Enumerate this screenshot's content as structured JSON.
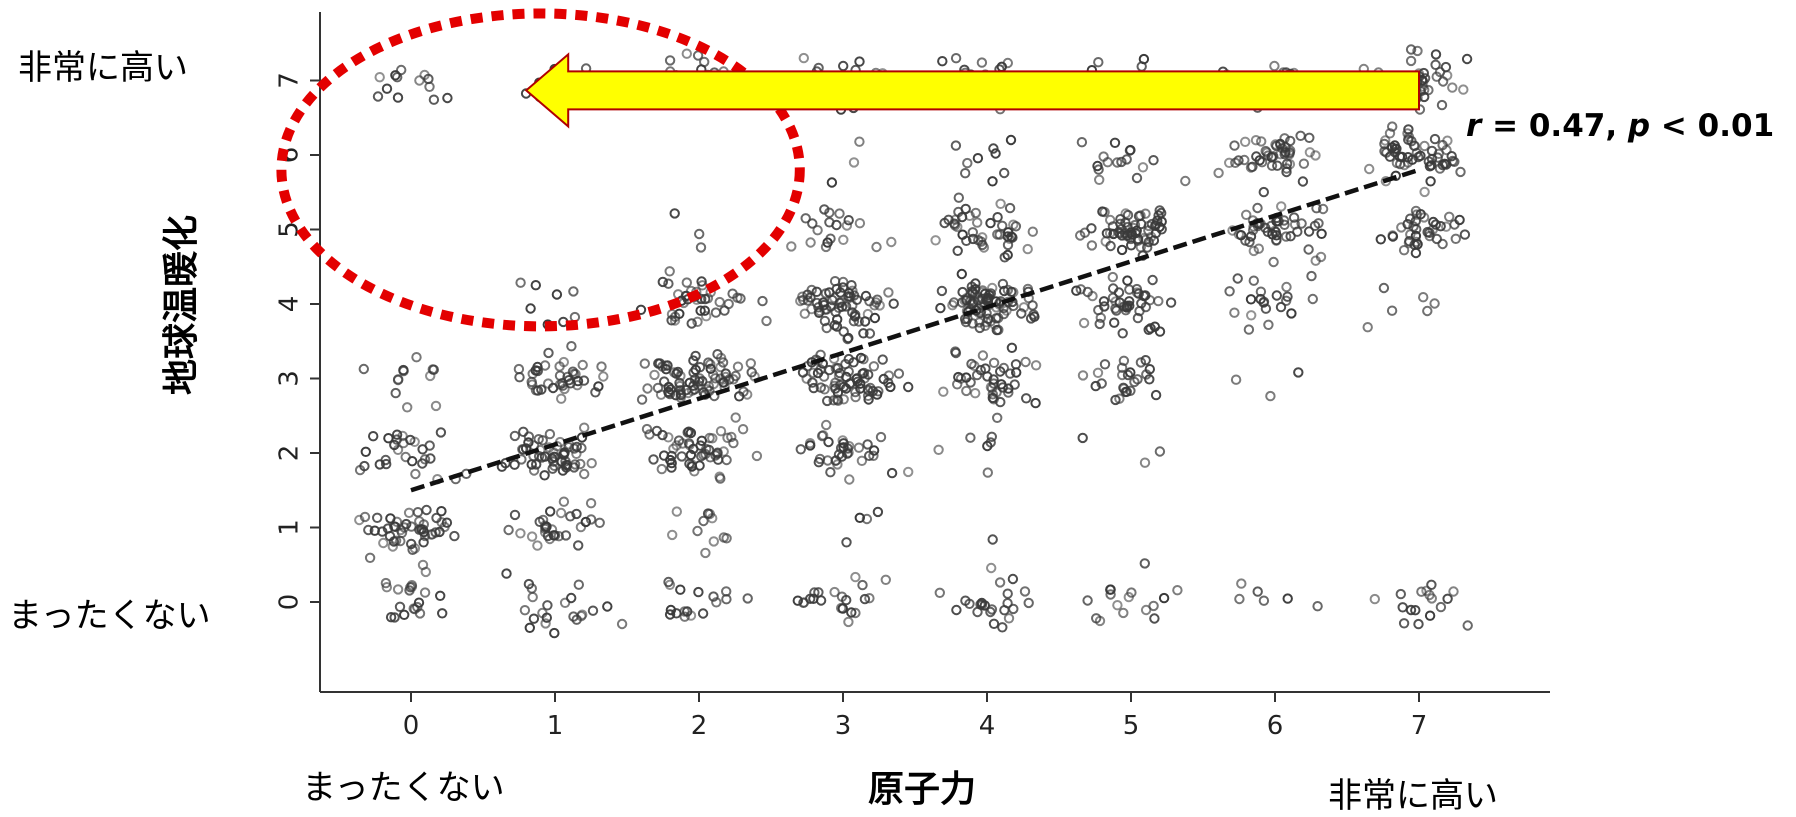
{
  "chart_data": {
    "type": "scatter",
    "title": "",
    "xlabel": "原子力",
    "ylabel": "地球温暖化",
    "x_ticks": [
      "0",
      "1",
      "2",
      "3",
      "4",
      "5",
      "6",
      "7"
    ],
    "y_ticks": [
      "0",
      "1",
      "2",
      "3",
      "4",
      "5",
      "6",
      "7"
    ],
    "xlim": [
      -0.6,
      7.9
    ],
    "ylim": [
      -1.0,
      8.0
    ],
    "x_end_labels": {
      "low": "まったくない",
      "high": "非常に高い"
    },
    "y_end_labels": {
      "low": "まったくない",
      "high": "非常に高い"
    },
    "point_count_approx": 1500,
    "point_style": "open circles, jittered around integer rating combinations 0–7",
    "regression": {
      "x": [
        0.0,
        7.0
      ],
      "y": [
        1.5,
        5.8
      ],
      "style": "dashed"
    },
    "stats": {
      "r_sym": "r",
      "r_val": " = 0.47, ",
      "p_sym": "p",
      "p_val": " < 0.01"
    },
    "annotations": {
      "arrow": {
        "from": [
          7.0,
          6.8
        ],
        "to": [
          0.8,
          6.8
        ],
        "color": "#ffff00",
        "outline": "#b00000"
      },
      "ellipse": {
        "center": [
          0.9,
          5.8
        ],
        "rx": 1.8,
        "ry": 2.1,
        "color": "#e30000",
        "style": "dotted"
      }
    },
    "point_color": "#3a3a3a",
    "line_color": "#111111",
    "grid": false
  }
}
